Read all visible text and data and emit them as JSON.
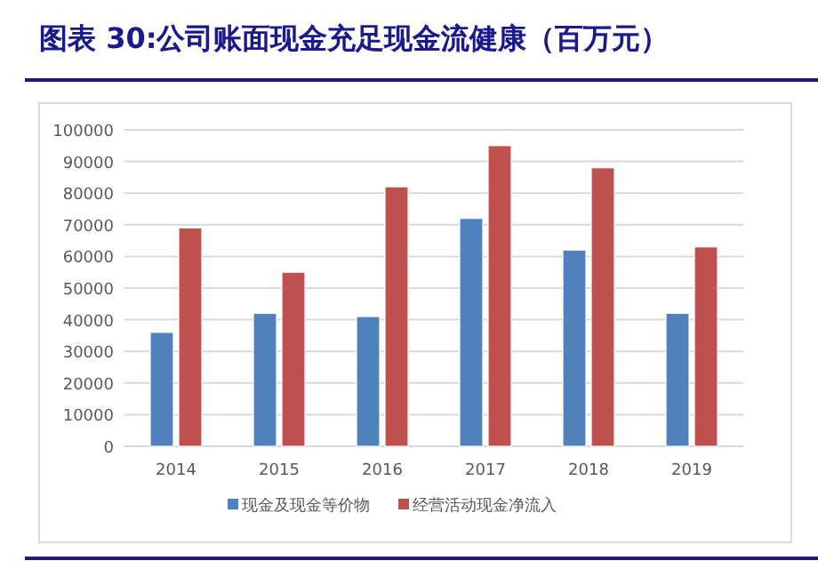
{
  "chart_data": {
    "type": "bar",
    "title": "图表 30:公司账面现金充足现金流健康（百万元）",
    "categories": [
      "2014",
      "2015",
      "2016",
      "2017",
      "2018",
      "2019"
    ],
    "series": [
      {
        "name": "现金及现金等价物",
        "color": "#4f81bd",
        "values": [
          36000,
          42000,
          41000,
          72000,
          62000,
          42000
        ]
      },
      {
        "name": "经营活动现金净流入",
        "color": "#c0504d",
        "values": [
          69000,
          55000,
          82000,
          95000,
          88000,
          63000
        ]
      }
    ],
    "ylim": [
      0,
      100000
    ],
    "yticks": [
      0,
      10000,
      20000,
      30000,
      40000,
      50000,
      60000,
      70000,
      80000,
      90000,
      100000
    ],
    "grid": "y",
    "legend": "bottom"
  }
}
